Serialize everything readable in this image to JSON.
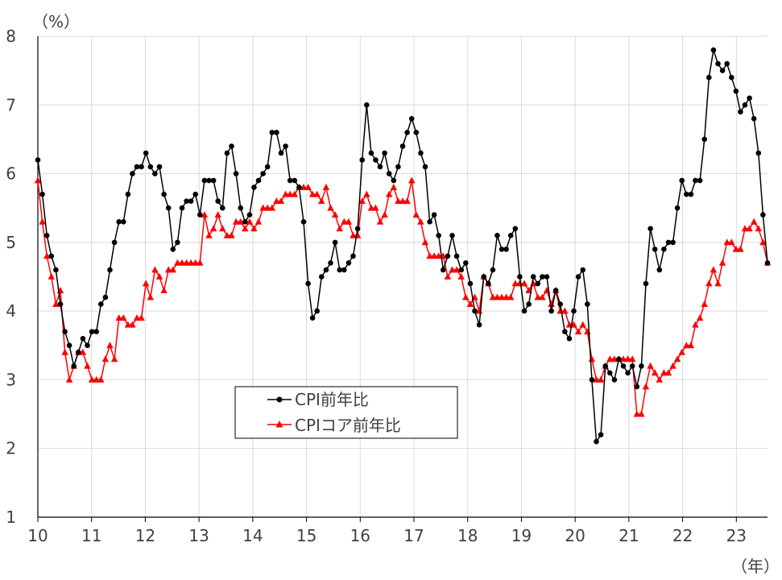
{
  "chart_data": {
    "type": "line",
    "ylabel": "（%）",
    "xlabel": "（年）",
    "ylim": [
      1,
      8
    ],
    "xlim": [
      10,
      23.58
    ],
    "yticks": [
      "1",
      "2",
      "3",
      "4",
      "5",
      "6",
      "7",
      "8"
    ],
    "xticks": [
      "10",
      "11",
      "12",
      "13",
      "14",
      "15",
      "16",
      "17",
      "18",
      "19",
      "20",
      "21",
      "22",
      "23"
    ],
    "grid": true,
    "legend": {
      "placement": "center-left"
    },
    "series": [
      {
        "name": "CPI前年比",
        "color": "#000000",
        "marker": "circle",
        "values": [
          6.2,
          5.7,
          5.1,
          4.8,
          4.6,
          4.1,
          3.7,
          3.5,
          3.2,
          3.4,
          3.6,
          3.5,
          3.7,
          3.7,
          4.1,
          4.2,
          4.6,
          5.0,
          5.3,
          5.3,
          5.7,
          6.0,
          6.1,
          6.1,
          6.3,
          6.1,
          6.0,
          6.1,
          5.7,
          5.5,
          4.9,
          5.0,
          5.5,
          5.6,
          5.6,
          5.7,
          5.4,
          5.9,
          5.9,
          5.9,
          5.6,
          5.5,
          6.3,
          6.4,
          6.0,
          5.5,
          5.3,
          5.4,
          5.8,
          5.9,
          6.0,
          6.1,
          6.6,
          6.6,
          6.3,
          6.4,
          5.9,
          5.9,
          5.8,
          5.3,
          4.4,
          3.9,
          4.0,
          4.5,
          4.6,
          4.7,
          5.0,
          4.6,
          4.6,
          4.7,
          4.8,
          5.2,
          6.2,
          7.0,
          6.3,
          6.2,
          6.1,
          6.3,
          6.0,
          5.9,
          6.1,
          6.4,
          6.6,
          6.8,
          6.6,
          6.3,
          6.1,
          5.3,
          5.4,
          5.1,
          4.6,
          4.8,
          5.1,
          4.8,
          4.6,
          4.7,
          4.4,
          4.0,
          3.8,
          4.5,
          4.4,
          4.6,
          5.1,
          4.9,
          4.9,
          5.1,
          5.2,
          4.5,
          4.0,
          4.1,
          4.5,
          4.4,
          4.5,
          4.5,
          4.0,
          4.3,
          4.1,
          3.7,
          3.6,
          4.0,
          4.5,
          4.6,
          4.1,
          3.0,
          2.1,
          2.2,
          3.2,
          3.1,
          3.0,
          3.3,
          3.2,
          3.1,
          3.2,
          2.9,
          3.2,
          4.4,
          5.2,
          4.9,
          4.6,
          4.9,
          5.0,
          5.0,
          5.5,
          5.9,
          5.7,
          5.7,
          5.9,
          5.9,
          6.5,
          7.4,
          7.8,
          7.6,
          7.5,
          7.6,
          7.4,
          7.2,
          6.9,
          7.0,
          7.1,
          6.8,
          6.3,
          5.4,
          4.7
        ]
      },
      {
        "name": "CPIコア前年比",
        "color": "#ff0000",
        "marker": "triangle",
        "values": [
          5.9,
          5.3,
          4.8,
          4.5,
          4.1,
          4.3,
          3.4,
          3.0,
          3.2,
          3.4,
          3.4,
          3.2,
          3.0,
          3.0,
          3.0,
          3.3,
          3.5,
          3.3,
          3.9,
          3.9,
          3.8,
          3.8,
          3.9,
          3.9,
          4.4,
          4.2,
          4.6,
          4.5,
          4.3,
          4.6,
          4.6,
          4.7,
          4.7,
          4.7,
          4.7,
          4.7,
          4.7,
          5.4,
          5.1,
          5.2,
          5.4,
          5.2,
          5.1,
          5.1,
          5.3,
          5.3,
          5.2,
          5.3,
          5.2,
          5.3,
          5.5,
          5.5,
          5.5,
          5.6,
          5.6,
          5.7,
          5.7,
          5.7,
          5.8,
          5.8,
          5.8,
          5.7,
          5.7,
          5.6,
          5.8,
          5.5,
          5.4,
          5.2,
          5.3,
          5.3,
          5.1,
          5.1,
          5.6,
          5.7,
          5.5,
          5.5,
          5.3,
          5.4,
          5.7,
          5.8,
          5.6,
          5.6,
          5.6,
          5.9,
          5.4,
          5.3,
          5.0,
          4.8,
          4.8,
          4.8,
          4.8,
          4.5,
          4.6,
          4.6,
          4.5,
          4.2,
          4.1,
          4.2,
          4.0,
          4.5,
          4.4,
          4.2,
          4.2,
          4.2,
          4.2,
          4.2,
          4.4,
          4.4,
          4.4,
          4.3,
          4.4,
          4.2,
          4.2,
          4.3,
          4.1,
          4.3,
          4.0,
          4.0,
          3.8,
          3.8,
          3.7,
          3.8,
          3.7,
          3.3,
          3.0,
          3.0,
          3.2,
          3.3,
          3.3,
          3.3,
          3.3,
          3.3,
          3.3,
          2.5,
          2.5,
          2.9,
          3.2,
          3.1,
          3.0,
          3.1,
          3.1,
          3.2,
          3.3,
          3.4,
          3.5,
          3.5,
          3.8,
          3.9,
          4.1,
          4.4,
          4.6,
          4.4,
          4.7,
          5.0,
          5.0,
          4.9,
          4.9,
          5.2,
          5.2,
          5.3,
          5.2,
          5.0,
          4.7
        ]
      }
    ]
  }
}
